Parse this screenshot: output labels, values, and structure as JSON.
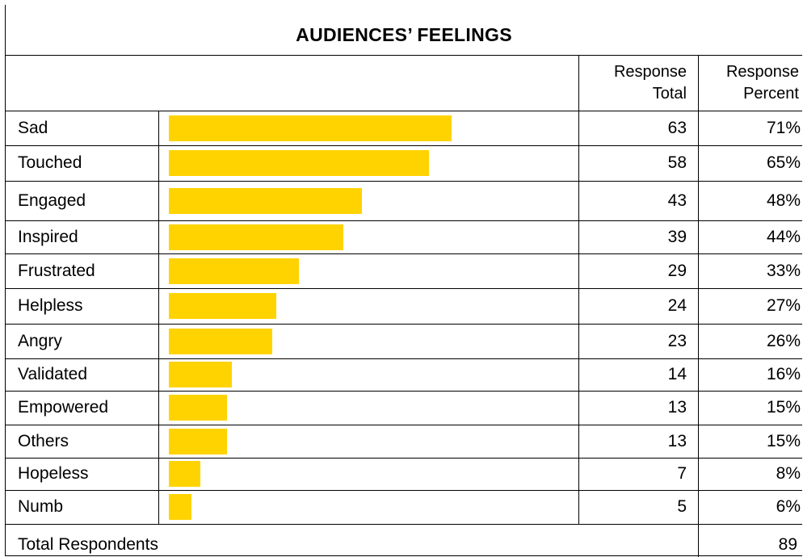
{
  "title": "AUDIENCES’ FEELINGS",
  "headers": {
    "total_line1": "Response",
    "total_line2": "Total",
    "percent_line1": "Response",
    "percent_line2": "Percent"
  },
  "colors": {
    "bar": "#FFD300",
    "border": "#000000"
  },
  "footer": {
    "label": "Total Respondents",
    "value": "89"
  },
  "chart_data": {
    "type": "bar",
    "orientation": "horizontal",
    "title": "AUDIENCES’ FEELINGS",
    "categories": [
      "Sad",
      "Touched",
      "Engaged",
      "Inspired",
      "Frustrated",
      "Helpless",
      "Angry",
      "Validated",
      "Empowered",
      "Others",
      "Hopeless",
      "Numb"
    ],
    "values": [
      63,
      58,
      43,
      39,
      29,
      24,
      23,
      14,
      13,
      13,
      7,
      5
    ],
    "percents": [
      "71%",
      "65%",
      "48%",
      "44%",
      "33%",
      "27%",
      "26%",
      "16%",
      "15%",
      "15%",
      "8%",
      "6%"
    ],
    "percent_values": [
      71,
      65,
      48,
      44,
      33,
      27,
      26,
      16,
      15,
      15,
      8,
      6
    ],
    "totals": [
      "63",
      "58",
      "43",
      "39",
      "29",
      "24",
      "23",
      "14",
      "13",
      "13",
      "7",
      "5"
    ],
    "total_respondents": 89
  }
}
